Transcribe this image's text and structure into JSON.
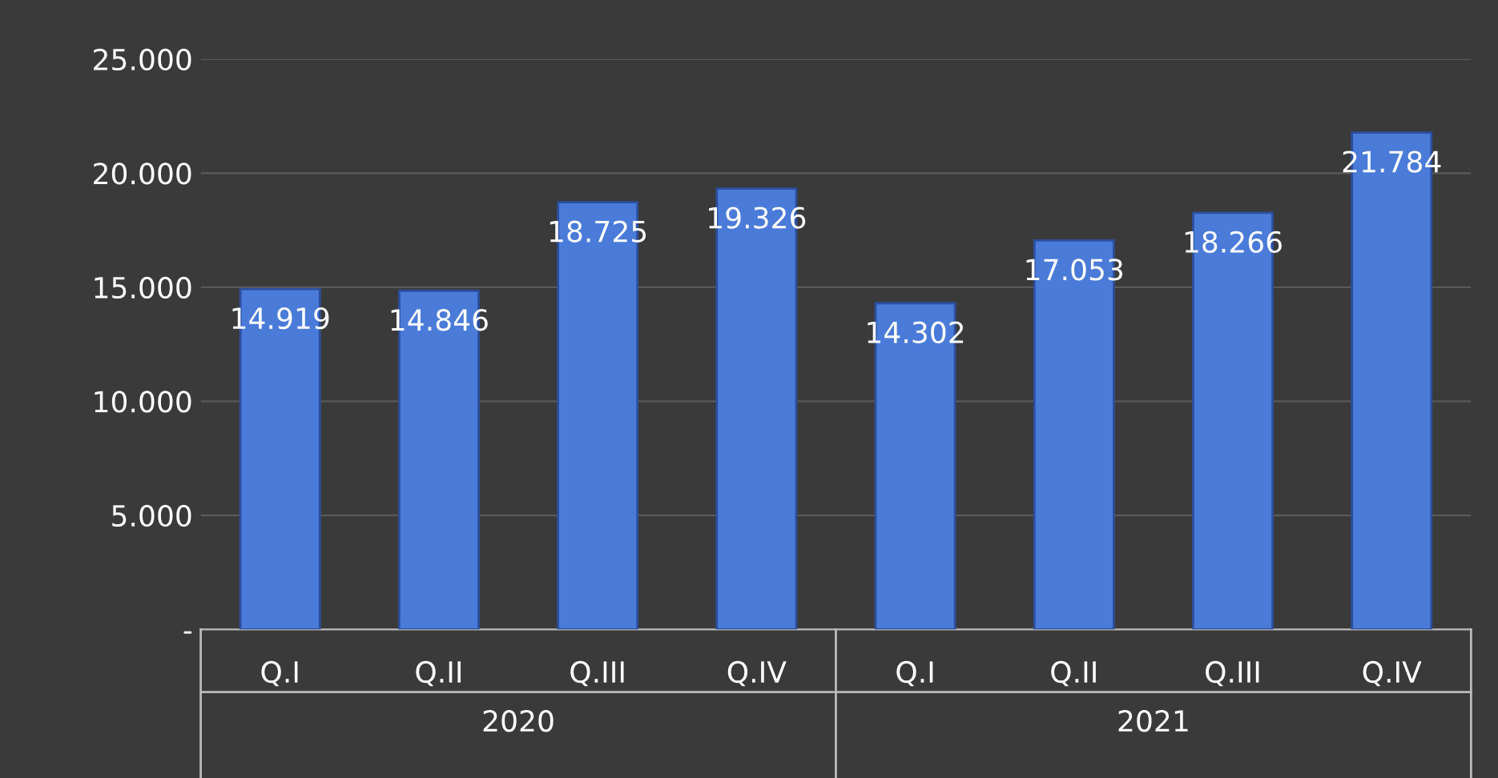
{
  "chart_data": {
    "type": "bar",
    "categories": [
      "Q.I",
      "Q.II",
      "Q.III",
      "Q.IV",
      "Q.I",
      "Q.II",
      "Q.III",
      "Q.IV"
    ],
    "values": [
      14919,
      14846,
      18725,
      19326,
      14302,
      17053,
      18266,
      21784
    ],
    "value_labels": [
      "14.919",
      "14.846",
      "18.725",
      "19.326",
      "14.302",
      "17.053",
      "18.266",
      "21.784"
    ],
    "color": "#4a7bd8",
    "ylim": [
      0,
      25000
    ],
    "yticks": [
      {
        "value": 0,
        "label": "-"
      },
      {
        "value": 5000,
        "label": "5.000"
      },
      {
        "value": 10000,
        "label": "10.000"
      },
      {
        "value": 15000,
        "label": "15.000"
      },
      {
        "value": 20000,
        "label": "20.000"
      },
      {
        "value": 25000,
        "label": "25.000"
      }
    ],
    "grid": "y",
    "annotations": [
      "2020",
      "2021"
    ]
  }
}
